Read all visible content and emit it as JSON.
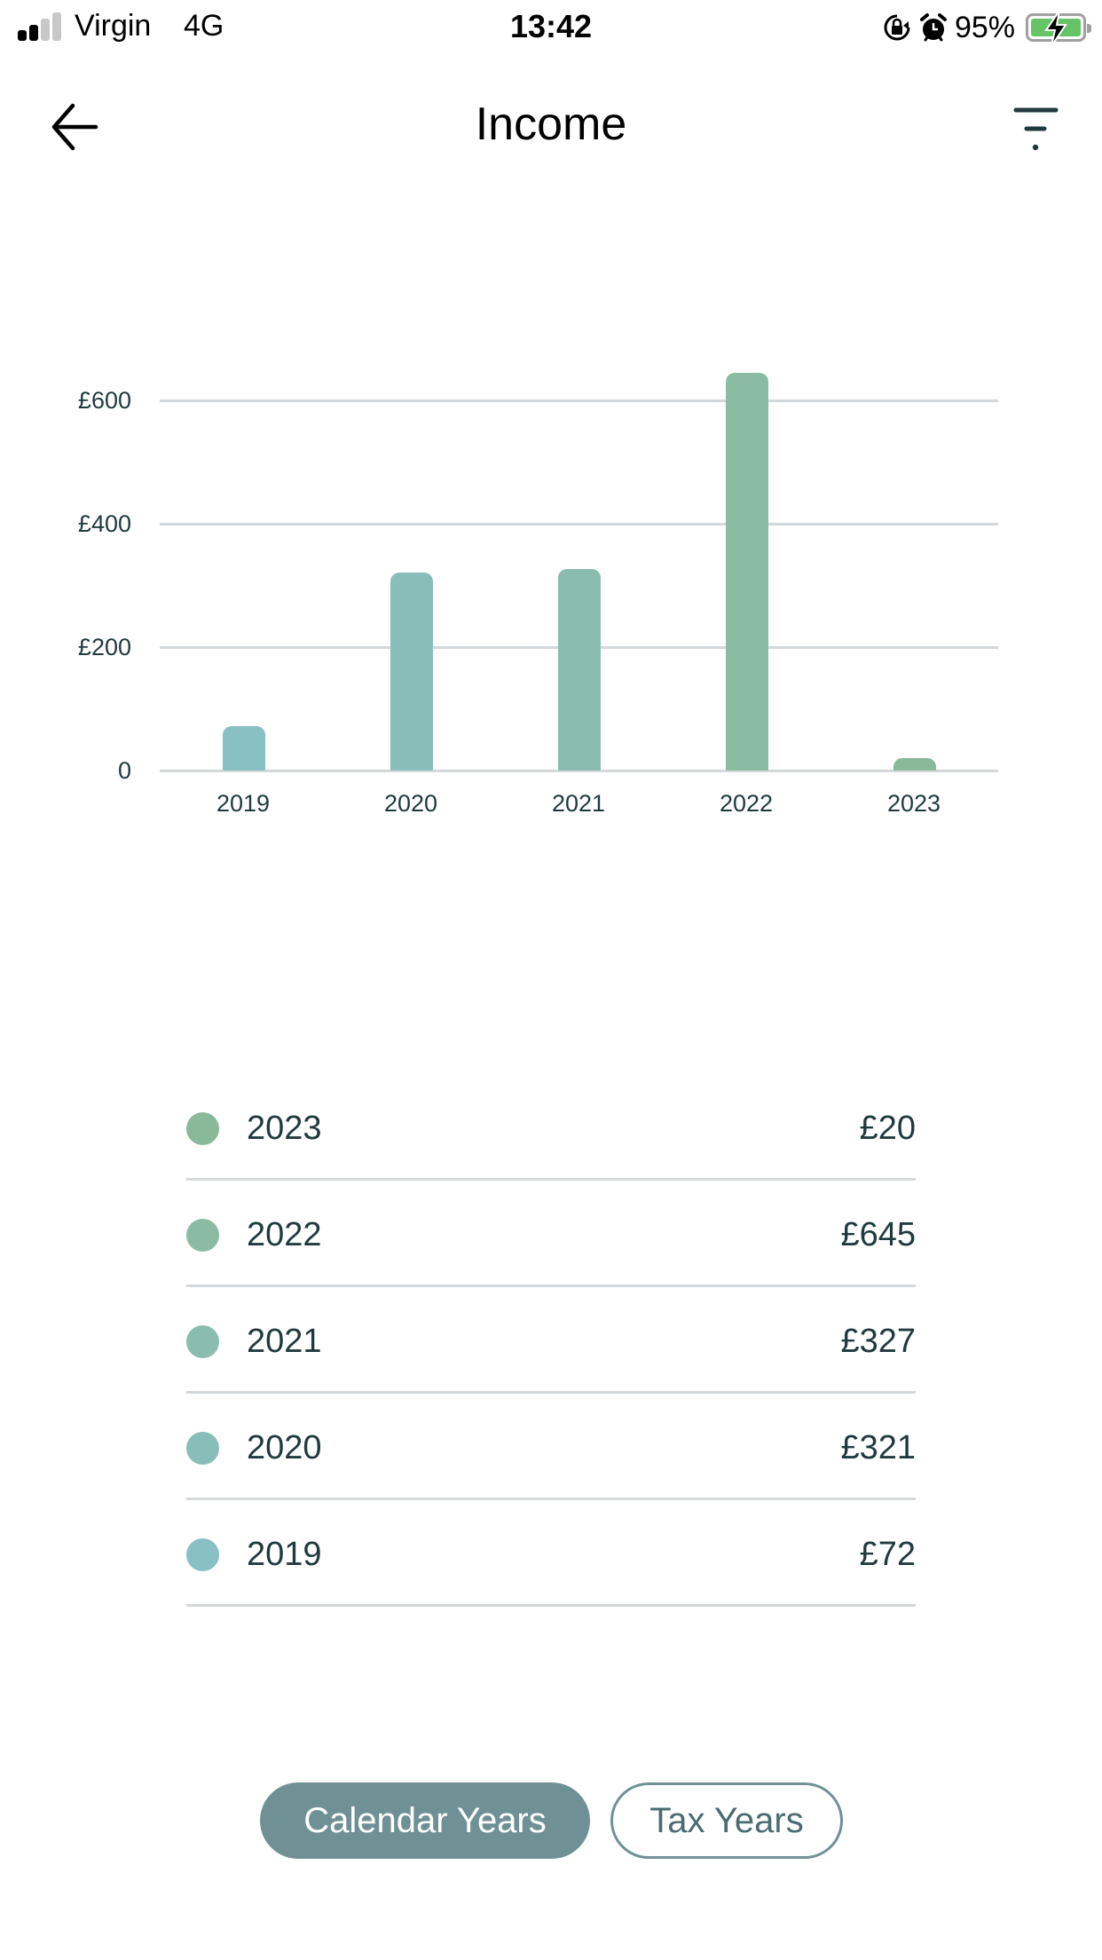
{
  "status_bar": {
    "carrier": "Virgin",
    "network": "4G",
    "time": "13:42",
    "battery_percent": "95%",
    "signal_bars_active": 2,
    "signal_bars_total": 4,
    "icons": [
      "orientation-lock-icon",
      "alarm-icon",
      "battery-charging-icon"
    ]
  },
  "header": {
    "title": "Income",
    "back_icon": "arrow-left-icon",
    "filter_icon": "filter-icon"
  },
  "colors": {
    "text": "#1f3a3d",
    "gridline": "#d4d8da",
    "toggle_active": "#6f9196",
    "bar_2019": "#89c0c4",
    "bar_2020": "#89bdb9",
    "bar_2021": "#8abdae",
    "bar_2022": "#8bbca3",
    "bar_2023": "#8ab99a"
  },
  "chart_data": {
    "type": "bar",
    "title": "Income",
    "xlabel": "",
    "ylabel": "",
    "categories": [
      "2019",
      "2020",
      "2021",
      "2022",
      "2023"
    ],
    "values": [
      72,
      321,
      327,
      645,
      20
    ],
    "colors": [
      "#89c0c4",
      "#89bdb9",
      "#8abdae",
      "#8bbca3",
      "#8ab99a"
    ],
    "y_ticks": [
      "0",
      "£200",
      "£400",
      "£600"
    ],
    "y_tick_values": [
      0,
      200,
      400,
      600
    ],
    "ylim": [
      0,
      645
    ],
    "grid": true,
    "legend": "list below chart",
    "currency": "£"
  },
  "list": {
    "items": [
      {
        "year": "2023",
        "value": "£20",
        "color": "#8ab99a"
      },
      {
        "year": "2022",
        "value": "£645",
        "color": "#8bbca3"
      },
      {
        "year": "2021",
        "value": "£327",
        "color": "#8abdae"
      },
      {
        "year": "2020",
        "value": "£321",
        "color": "#89bdb9"
      },
      {
        "year": "2019",
        "value": "£72",
        "color": "#89c0c4"
      }
    ]
  },
  "toggle": {
    "calendar_years_label": "Calendar Years",
    "tax_years_label": "Tax Years",
    "selected": "Calendar Years"
  }
}
